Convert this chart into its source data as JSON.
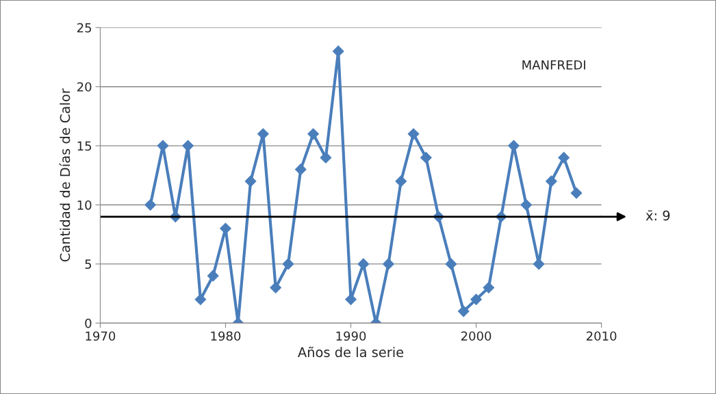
{
  "chart_data": {
    "type": "line",
    "xlabel": "Años de la serie",
    "ylabel": "Cantidad de Días de Calor",
    "annotations": [
      "MANFREDI"
    ],
    "x": [
      1974,
      1975,
      1976,
      1977,
      1978,
      1979,
      1980,
      1981,
      1982,
      1983,
      1984,
      1985,
      1986,
      1987,
      1988,
      1989,
      1990,
      1991,
      1992,
      1993,
      1994,
      1995,
      1996,
      1997,
      1998,
      1999,
      2000,
      2001,
      2002,
      2003,
      2004,
      2005,
      2006,
      2007,
      2008
    ],
    "series": [
      {
        "color": "#4a7ebb",
        "values": [
          10,
          15,
          9,
          15,
          2,
          4,
          8,
          0,
          12,
          16,
          3,
          5,
          13,
          16,
          14,
          23,
          2,
          5,
          0,
          5,
          12,
          16,
          14,
          9,
          5,
          1,
          2,
          3,
          9,
          15,
          10,
          5,
          12,
          14,
          11
        ]
      }
    ],
    "ref_lines": [
      {
        "axis": "y",
        "value": 9,
        "label": "x̄: 9",
        "color": "#000000"
      }
    ],
    "xlim": [
      1970,
      2010
    ],
    "xticks": [
      1970,
      1980,
      1990,
      2000,
      2010
    ],
    "ylim": [
      0,
      25
    ],
    "yticks": [
      0,
      5,
      10,
      15,
      20,
      25
    ],
    "grid": "y",
    "legend": false,
    "marker": "diamond",
    "line_style": "solid"
  }
}
